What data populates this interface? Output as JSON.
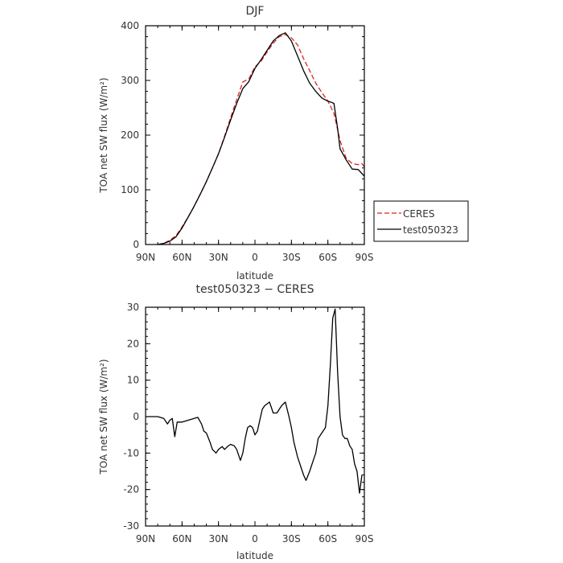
{
  "chart_data": [
    {
      "type": "line",
      "title": "DJF",
      "xlabel": "latitude",
      "ylabel": "TOA net SW flux (W/m²)",
      "xlim": [
        90,
        -90
      ],
      "ylim": [
        0,
        400
      ],
      "xticks": [
        {
          "value": 90,
          "label": "90N"
        },
        {
          "value": 60,
          "label": "60N"
        },
        {
          "value": 30,
          "label": "30N"
        },
        {
          "value": 0,
          "label": "0"
        },
        {
          "value": -30,
          "label": "30S"
        },
        {
          "value": -60,
          "label": "60S"
        },
        {
          "value": -90,
          "label": "90S"
        }
      ],
      "yticks": [
        0,
        100,
        200,
        300,
        400
      ],
      "grid": false,
      "legend": "right",
      "series": [
        {
          "name": "CERES",
          "color": "#dd2222",
          "dash": true,
          "x": [
            80,
            75,
            70,
            65,
            60,
            55,
            50,
            45,
            40,
            35,
            30,
            25,
            20,
            15,
            10,
            5,
            0,
            -5,
            -10,
            -15,
            -20,
            -25,
            -30,
            -35,
            -40,
            -45,
            -50,
            -55,
            -60,
            -65,
            -70,
            -75,
            -80,
            -85,
            -88,
            -90
          ],
          "y": [
            0,
            2,
            8,
            16,
            32,
            50,
            70,
            92,
            115,
            140,
            166,
            198,
            232,
            265,
            297,
            303,
            325,
            335,
            352,
            368,
            380,
            384,
            378,
            365,
            340,
            318,
            295,
            278,
            262,
            240,
            190,
            158,
            148,
            146,
            148,
            142
          ]
        },
        {
          "name": "test050323",
          "color": "#000000",
          "dash": false,
          "x": [
            80,
            75,
            70,
            65,
            60,
            55,
            50,
            45,
            40,
            35,
            30,
            25,
            20,
            15,
            10,
            5,
            0,
            -5,
            -10,
            -15,
            -20,
            -25,
            -30,
            -35,
            -40,
            -45,
            -50,
            -55,
            -60,
            -63,
            -65,
            -68,
            -70,
            -75,
            -80,
            -85,
            -90
          ],
          "y": [
            0,
            2,
            6,
            14,
            30,
            50,
            70,
            92,
            115,
            140,
            166,
            196,
            228,
            258,
            285,
            298,
            322,
            338,
            355,
            372,
            382,
            387,
            372,
            345,
            318,
            295,
            280,
            268,
            262,
            260,
            258,
            212,
            175,
            155,
            138,
            137,
            125
          ]
        }
      ]
    },
    {
      "type": "line",
      "title": "test050323 − CERES",
      "xlabel": "latitude",
      "ylabel": "TOA net SW flux (W/m²)",
      "xlim": [
        90,
        -90
      ],
      "ylim": [
        -30,
        30
      ],
      "xticks": [
        {
          "value": 90,
          "label": "90N"
        },
        {
          "value": 60,
          "label": "60N"
        },
        {
          "value": 30,
          "label": "30N"
        },
        {
          "value": 0,
          "label": "0"
        },
        {
          "value": -30,
          "label": "30S"
        },
        {
          "value": -60,
          "label": "60S"
        },
        {
          "value": -90,
          "label": "90S"
        }
      ],
      "yticks": [
        30,
        20,
        10,
        0,
        -10,
        -20,
        -30
      ],
      "grid": false,
      "series": [
        {
          "name": "",
          "color": "#000000",
          "dash": false,
          "x": [
            90,
            85,
            80,
            75,
            72,
            70,
            68,
            66,
            64,
            60,
            55,
            50,
            47,
            44,
            42,
            40,
            37,
            35,
            32,
            30,
            27,
            25,
            22,
            20,
            17,
            15,
            12,
            10,
            8,
            6,
            4,
            2,
            0,
            -2,
            -4,
            -6,
            -8,
            -10,
            -12,
            -15,
            -18,
            -20,
            -22,
            -25,
            -28,
            -30,
            -32,
            -35,
            -38,
            -40,
            -42,
            -45,
            -48,
            -50,
            -52,
            -55,
            -58,
            -60,
            -62,
            -64,
            -66,
            -68,
            -70,
            -72,
            -74,
            -76,
            -78,
            -80,
            -82,
            -84,
            -86,
            -88
          ],
          "y": [
            0,
            0,
            0,
            -0.5,
            -2,
            -1,
            -0.5,
            -5.5,
            -1.5,
            -1.5,
            -1,
            -0.5,
            -0.2,
            -2,
            -4,
            -4.5,
            -7,
            -9,
            -10,
            -9,
            -8.2,
            -9,
            -8,
            -7.6,
            -8,
            -9,
            -12,
            -10,
            -6,
            -3,
            -2.5,
            -3,
            -5,
            -4,
            -1,
            2,
            3,
            3.5,
            4,
            1,
            1,
            2,
            3,
            4,
            0,
            -3,
            -7,
            -11,
            -14,
            -16,
            -17.5,
            -15,
            -12,
            -10,
            -6,
            -4.5,
            -3,
            3,
            14,
            27,
            29.5,
            12,
            0,
            -5,
            -6,
            -6,
            -8,
            -9,
            -13,
            -15,
            -21,
            -16
          ]
        }
      ]
    }
  ]
}
